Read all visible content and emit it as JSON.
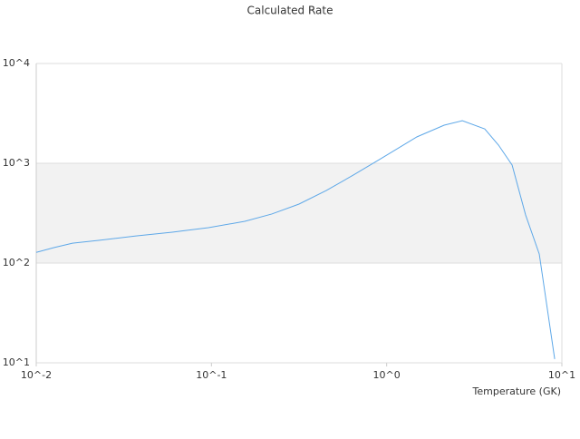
{
  "chart_data": {
    "type": "line",
    "title": "Calculated Rate",
    "x_label": "Temperature (GK)",
    "xscale": "log",
    "yscale": "log",
    "xlim": [
      0.01,
      10
    ],
    "ylim": [
      10,
      10000
    ],
    "xticks": [
      {
        "value": 0.01,
        "label": "10^-2"
      },
      {
        "value": 0.1,
        "label": "10^-1"
      },
      {
        "value": 1,
        "label": "10^0"
      },
      {
        "value": 10,
        "label": "10^1"
      }
    ],
    "yticks": [
      {
        "value": 10,
        "label": "10^1"
      },
      {
        "value": 100,
        "label": "10^2"
      },
      {
        "value": 1000,
        "label": "10^3"
      },
      {
        "value": 10000,
        "label": "10^4"
      }
    ],
    "grid": true,
    "series": [
      {
        "color": "#5ea8e8",
        "x": [
          0.01,
          0.01268,
          0.0161,
          0.023,
          0.0371,
          0.0597,
          0.0962,
          0.155,
          0.221,
          0.316,
          0.452,
          0.646,
          0.924,
          1.49,
          2.13,
          2.7,
          3.63,
          4.35,
          5.2,
          6.21,
          7.43,
          9.1
        ],
        "values": [
          128,
          143,
          158,
          169,
          187,
          204,
          226,
          262,
          310,
          390,
          533,
          762,
          1110,
          1840,
          2410,
          2670,
          2210,
          1520,
          960,
          303,
          123,
          10.9
        ]
      }
    ]
  }
}
